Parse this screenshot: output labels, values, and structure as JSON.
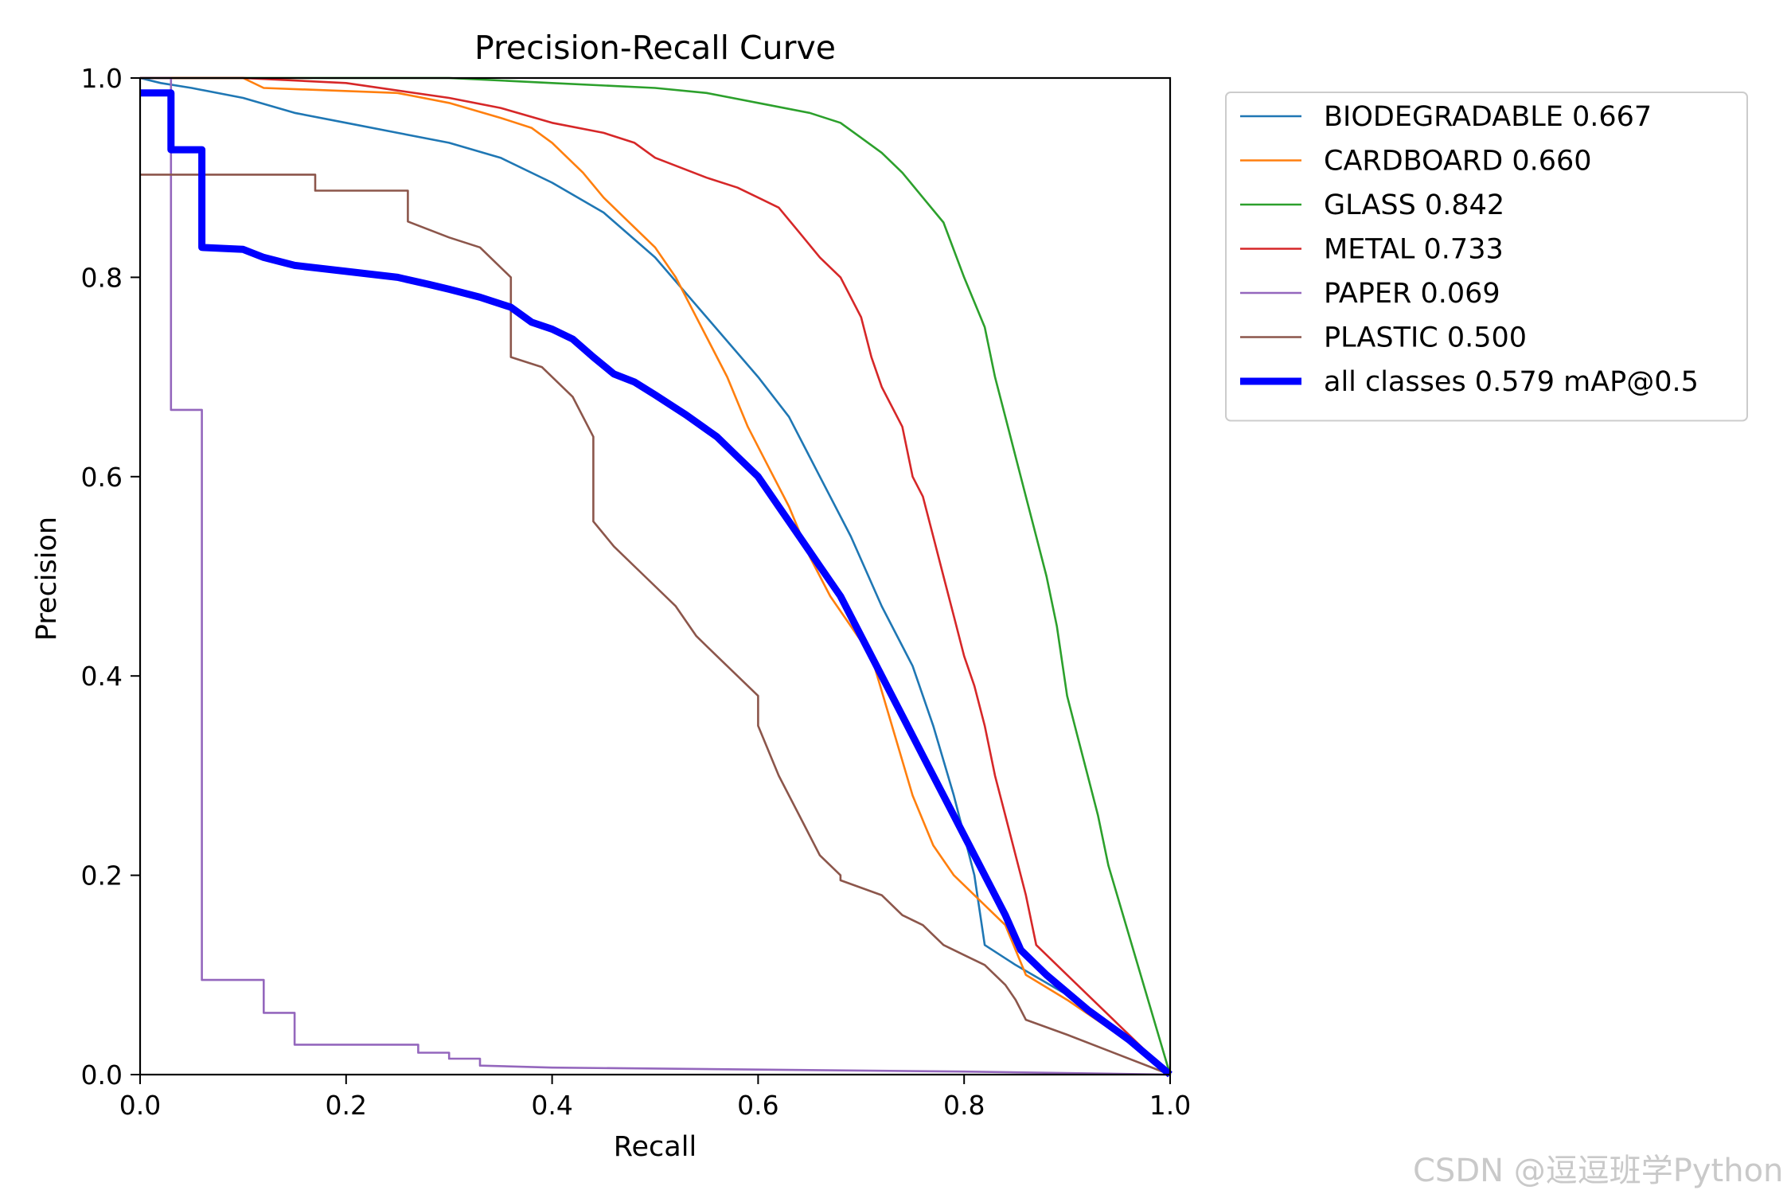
{
  "chart_data": {
    "type": "line",
    "title": "Precision-Recall Curve",
    "xlabel": "Recall",
    "ylabel": "Precision",
    "xlim": [
      0.0,
      1.0
    ],
    "ylim": [
      0.0,
      1.0
    ],
    "xticks": [
      "0.0",
      "0.2",
      "0.4",
      "0.6",
      "0.8",
      "1.0"
    ],
    "yticks": [
      "0.0",
      "0.2",
      "0.4",
      "0.6",
      "0.8",
      "1.0"
    ],
    "grid": false,
    "legend_position": "outside-right-top",
    "series": [
      {
        "name": "BIODEGRADABLE 0.667",
        "color": "#1f77b4",
        "width": "normal",
        "points": [
          [
            0.0,
            1.0
          ],
          [
            0.02,
            0.995
          ],
          [
            0.05,
            0.99
          ],
          [
            0.1,
            0.98
          ],
          [
            0.15,
            0.965
          ],
          [
            0.2,
            0.955
          ],
          [
            0.25,
            0.945
          ],
          [
            0.3,
            0.935
          ],
          [
            0.35,
            0.92
          ],
          [
            0.4,
            0.895
          ],
          [
            0.45,
            0.865
          ],
          [
            0.5,
            0.82
          ],
          [
            0.55,
            0.76
          ],
          [
            0.6,
            0.7
          ],
          [
            0.63,
            0.66
          ],
          [
            0.66,
            0.6
          ],
          [
            0.69,
            0.54
          ],
          [
            0.72,
            0.47
          ],
          [
            0.75,
            0.41
          ],
          [
            0.77,
            0.35
          ],
          [
            0.79,
            0.28
          ],
          [
            0.81,
            0.2
          ],
          [
            0.82,
            0.13
          ],
          [
            0.85,
            0.11
          ],
          [
            0.9,
            0.08
          ],
          [
            0.95,
            0.045
          ],
          [
            1.0,
            0.0
          ]
        ]
      },
      {
        "name": "CARDBOARD 0.660",
        "color": "#ff7f0e",
        "width": "normal",
        "points": [
          [
            0.0,
            1.0
          ],
          [
            0.1,
            1.0
          ],
          [
            0.12,
            0.99
          ],
          [
            0.25,
            0.985
          ],
          [
            0.3,
            0.975
          ],
          [
            0.35,
            0.96
          ],
          [
            0.38,
            0.95
          ],
          [
            0.4,
            0.935
          ],
          [
            0.43,
            0.905
          ],
          [
            0.45,
            0.88
          ],
          [
            0.47,
            0.86
          ],
          [
            0.5,
            0.83
          ],
          [
            0.52,
            0.8
          ],
          [
            0.55,
            0.74
          ],
          [
            0.57,
            0.7
          ],
          [
            0.59,
            0.65
          ],
          [
            0.61,
            0.61
          ],
          [
            0.63,
            0.57
          ],
          [
            0.65,
            0.52
          ],
          [
            0.67,
            0.48
          ],
          [
            0.69,
            0.45
          ],
          [
            0.71,
            0.42
          ],
          [
            0.73,
            0.35
          ],
          [
            0.75,
            0.28
          ],
          [
            0.77,
            0.23
          ],
          [
            0.79,
            0.2
          ],
          [
            0.81,
            0.18
          ],
          [
            0.84,
            0.15
          ],
          [
            0.86,
            0.1
          ],
          [
            0.9,
            0.075
          ],
          [
            0.95,
            0.04
          ],
          [
            1.0,
            0.0
          ]
        ]
      },
      {
        "name": "GLASS 0.842",
        "color": "#2ca02c",
        "width": "normal",
        "points": [
          [
            0.0,
            1.0
          ],
          [
            0.3,
            1.0
          ],
          [
            0.4,
            0.995
          ],
          [
            0.5,
            0.99
          ],
          [
            0.55,
            0.985
          ],
          [
            0.6,
            0.975
          ],
          [
            0.65,
            0.965
          ],
          [
            0.68,
            0.955
          ],
          [
            0.7,
            0.94
          ],
          [
            0.72,
            0.925
          ],
          [
            0.74,
            0.905
          ],
          [
            0.76,
            0.88
          ],
          [
            0.78,
            0.855
          ],
          [
            0.8,
            0.8
          ],
          [
            0.82,
            0.75
          ],
          [
            0.83,
            0.7
          ],
          [
            0.84,
            0.66
          ],
          [
            0.85,
            0.62
          ],
          [
            0.86,
            0.58
          ],
          [
            0.87,
            0.54
          ],
          [
            0.88,
            0.5
          ],
          [
            0.89,
            0.45
          ],
          [
            0.9,
            0.38
          ],
          [
            0.91,
            0.34
          ],
          [
            0.92,
            0.3
          ],
          [
            0.93,
            0.26
          ],
          [
            0.94,
            0.21
          ],
          [
            1.0,
            0.0
          ]
        ]
      },
      {
        "name": "METAL 0.733",
        "color": "#d62728",
        "width": "normal",
        "points": [
          [
            0.0,
            1.0
          ],
          [
            0.1,
            1.0
          ],
          [
            0.2,
            0.995
          ],
          [
            0.3,
            0.98
          ],
          [
            0.35,
            0.97
          ],
          [
            0.4,
            0.955
          ],
          [
            0.45,
            0.945
          ],
          [
            0.48,
            0.935
          ],
          [
            0.5,
            0.92
          ],
          [
            0.55,
            0.9
          ],
          [
            0.58,
            0.89
          ],
          [
            0.6,
            0.88
          ],
          [
            0.62,
            0.87
          ],
          [
            0.64,
            0.845
          ],
          [
            0.66,
            0.82
          ],
          [
            0.68,
            0.8
          ],
          [
            0.7,
            0.76
          ],
          [
            0.71,
            0.72
          ],
          [
            0.72,
            0.69
          ],
          [
            0.74,
            0.65
          ],
          [
            0.75,
            0.6
          ],
          [
            0.76,
            0.58
          ],
          [
            0.77,
            0.54
          ],
          [
            0.78,
            0.5
          ],
          [
            0.79,
            0.46
          ],
          [
            0.8,
            0.42
          ],
          [
            0.81,
            0.39
          ],
          [
            0.82,
            0.35
          ],
          [
            0.83,
            0.3
          ],
          [
            0.84,
            0.26
          ],
          [
            0.85,
            0.22
          ],
          [
            0.86,
            0.18
          ],
          [
            0.87,
            0.13
          ],
          [
            0.9,
            0.1
          ],
          [
            0.95,
            0.05
          ],
          [
            1.0,
            0.0
          ]
        ]
      },
      {
        "name": "PAPER 0.069",
        "color": "#9467bd",
        "width": "normal",
        "points": [
          [
            0.0,
            1.0
          ],
          [
            0.03,
            1.0
          ],
          [
            0.03,
            0.667
          ],
          [
            0.06,
            0.667
          ],
          [
            0.06,
            0.095
          ],
          [
            0.12,
            0.095
          ],
          [
            0.12,
            0.062
          ],
          [
            0.15,
            0.062
          ],
          [
            0.15,
            0.03
          ],
          [
            0.27,
            0.03
          ],
          [
            0.27,
            0.022
          ],
          [
            0.3,
            0.022
          ],
          [
            0.3,
            0.016
          ],
          [
            0.33,
            0.016
          ],
          [
            0.33,
            0.009
          ],
          [
            0.4,
            0.007
          ],
          [
            0.6,
            0.005
          ],
          [
            0.8,
            0.003
          ],
          [
            1.0,
            0.0
          ]
        ]
      },
      {
        "name": "PLASTIC 0.500",
        "color": "#8c564b",
        "width": "normal",
        "points": [
          [
            0.0,
            0.903
          ],
          [
            0.17,
            0.903
          ],
          [
            0.17,
            0.887
          ],
          [
            0.26,
            0.887
          ],
          [
            0.26,
            0.856
          ],
          [
            0.3,
            0.84
          ],
          [
            0.33,
            0.83
          ],
          [
            0.36,
            0.8
          ],
          [
            0.36,
            0.72
          ],
          [
            0.39,
            0.71
          ],
          [
            0.42,
            0.68
          ],
          [
            0.44,
            0.64
          ],
          [
            0.44,
            0.555
          ],
          [
            0.46,
            0.53
          ],
          [
            0.48,
            0.51
          ],
          [
            0.5,
            0.49
          ],
          [
            0.52,
            0.47
          ],
          [
            0.54,
            0.44
          ],
          [
            0.56,
            0.42
          ],
          [
            0.58,
            0.4
          ],
          [
            0.6,
            0.38
          ],
          [
            0.6,
            0.35
          ],
          [
            0.62,
            0.3
          ],
          [
            0.64,
            0.26
          ],
          [
            0.66,
            0.22
          ],
          [
            0.68,
            0.2
          ],
          [
            0.68,
            0.195
          ],
          [
            0.72,
            0.18
          ],
          [
            0.74,
            0.16
          ],
          [
            0.76,
            0.15
          ],
          [
            0.78,
            0.13
          ],
          [
            0.8,
            0.12
          ],
          [
            0.82,
            0.11
          ],
          [
            0.84,
            0.09
          ],
          [
            0.85,
            0.075
          ],
          [
            0.86,
            0.055
          ],
          [
            0.9,
            0.04
          ],
          [
            1.0,
            0.0
          ]
        ]
      },
      {
        "name": "all classes 0.579 mAP@0.5",
        "color": "#0000ff",
        "width": "thick",
        "points": [
          [
            0.0,
            0.985
          ],
          [
            0.03,
            0.985
          ],
          [
            0.03,
            0.928
          ],
          [
            0.06,
            0.928
          ],
          [
            0.06,
            0.83
          ],
          [
            0.1,
            0.828
          ],
          [
            0.12,
            0.82
          ],
          [
            0.15,
            0.812
          ],
          [
            0.2,
            0.806
          ],
          [
            0.25,
            0.8
          ],
          [
            0.28,
            0.793
          ],
          [
            0.3,
            0.788
          ],
          [
            0.33,
            0.78
          ],
          [
            0.36,
            0.77
          ],
          [
            0.38,
            0.755
          ],
          [
            0.4,
            0.748
          ],
          [
            0.42,
            0.738
          ],
          [
            0.44,
            0.72
          ],
          [
            0.46,
            0.703
          ],
          [
            0.48,
            0.695
          ],
          [
            0.5,
            0.682
          ],
          [
            0.53,
            0.662
          ],
          [
            0.56,
            0.64
          ],
          [
            0.58,
            0.62
          ],
          [
            0.6,
            0.6
          ],
          [
            0.62,
            0.57
          ],
          [
            0.64,
            0.54
          ],
          [
            0.66,
            0.51
          ],
          [
            0.68,
            0.48
          ],
          [
            0.7,
            0.44
          ],
          [
            0.72,
            0.4
          ],
          [
            0.74,
            0.36
          ],
          [
            0.76,
            0.32
          ],
          [
            0.78,
            0.28
          ],
          [
            0.8,
            0.24
          ],
          [
            0.82,
            0.2
          ],
          [
            0.84,
            0.16
          ],
          [
            0.855,
            0.125
          ],
          [
            0.88,
            0.1
          ],
          [
            0.92,
            0.065
          ],
          [
            0.96,
            0.035
          ],
          [
            1.0,
            0.0
          ]
        ]
      }
    ]
  },
  "watermark": "CSDN @逗逗班学Python"
}
